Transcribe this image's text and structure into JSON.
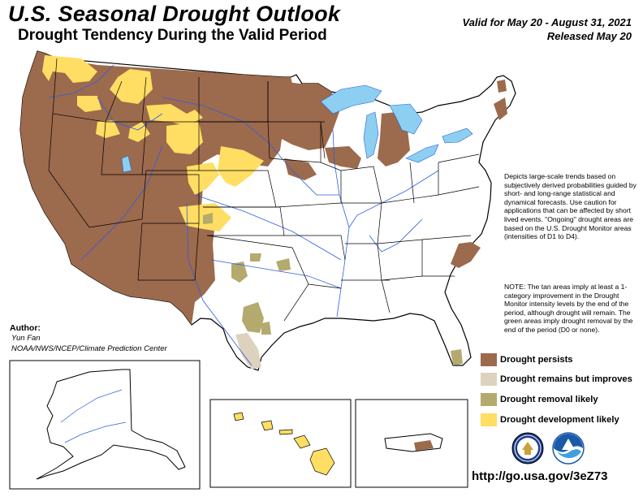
{
  "header": {
    "title": "U.S. Seasonal Drought Outlook",
    "subtitle": "Drought Tendency During the Valid Period",
    "valid": "Valid for May 20 - August 31, 2021",
    "released": "Released May 20"
  },
  "description": "Depicts large-scale trends based on subjectively derived probabilities guided by short- and long-range statistical and dynamical forecasts. Use caution for applications that can be affected by short lived events. \"Ongoing\" drought areas are based on the U.S. Drought Monitor areas (intensities of D1 to D4).",
  "note": "NOTE: The tan areas imply at least a 1-category improvement in the Drought Monitor intensity levels by the end of the period, although drought will remain. The green areas imply drought removal by the end of the period (D0 or none).",
  "author": {
    "label": "Author:",
    "name": "Yun Fan",
    "org": "NOAA/NWS/NCEP/Climate Prediction Center"
  },
  "legend": [
    {
      "label": "Drought persists",
      "color": "#9C6A4C"
    },
    {
      "label": "Drought remains but improves",
      "color": "#DDD2BE"
    },
    {
      "label": "Drought removal likely",
      "color": "#B4AA6E"
    },
    {
      "label": "Drought development likely",
      "color": "#FFDE63"
    }
  ],
  "colors": {
    "persists": "#9C6A4C",
    "improves": "#DDD2BE",
    "removal": "#B4AA6E",
    "development": "#FFDE63",
    "water": "#8CCFF0",
    "river": "#2C5FE0"
  },
  "logos": [
    {
      "name": "Department of Commerce seal",
      "icon": "doc-seal-icon"
    },
    {
      "name": "NOAA logo",
      "icon": "noaa-logo-icon"
    }
  ],
  "url": "http://go.usa.gov/3eZ73"
}
